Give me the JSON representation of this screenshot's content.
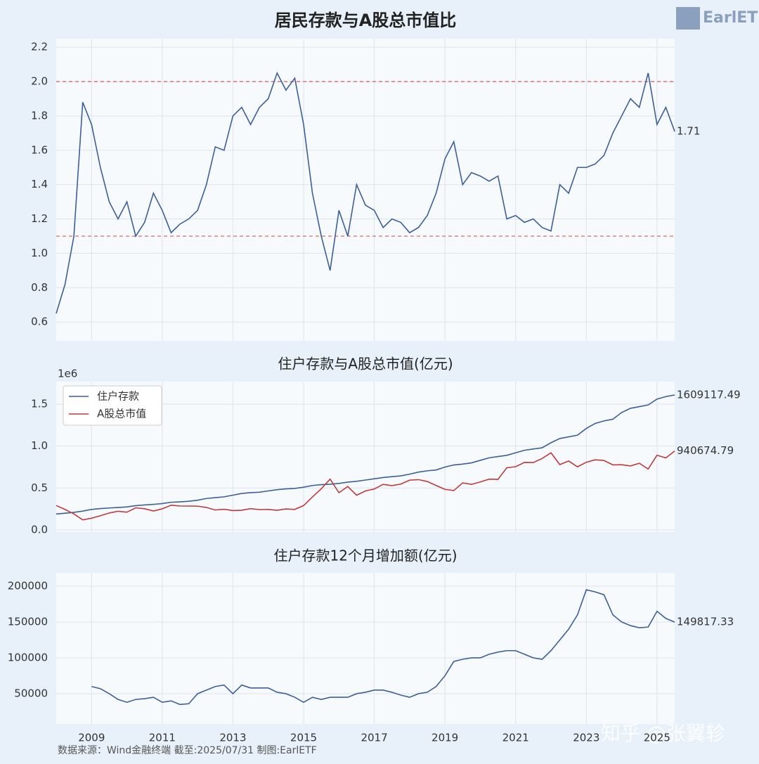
{
  "logo": "EarlETF",
  "footer": "数据来源：Wind金融终端 截至:2025/07/31 制图:EarlETF",
  "watermark": "知乎 @张翼轸",
  "chart_data": [
    {
      "type": "line",
      "title": "居民存款与A股总市值比",
      "xlim": [
        2008,
        2025.5
      ],
      "ylim": [
        0.49,
        2.25
      ],
      "yticks": [
        0.6,
        0.8,
        {
          "value": 1,
          "label": "1.0"
        },
        1.2,
        1.4,
        1.6,
        1.8,
        {
          "value": 2,
          "label": "2.0"
        },
        2.2
      ],
      "grid": true,
      "hlines": [
        2.0,
        1.1
      ],
      "hline_color": "#e06666",
      "end_labels": true,
      "x": [
        2008,
        2008.25,
        2008.5,
        2008.75,
        2009,
        2009.25,
        2009.5,
        2009.75,
        2010,
        2010.25,
        2010.5,
        2010.75,
        2011,
        2011.25,
        2011.5,
        2011.75,
        2012,
        2012.25,
        2012.5,
        2012.75,
        2013,
        2013.25,
        2013.5,
        2013.75,
        2014,
        2014.25,
        2014.5,
        2014.75,
        2015,
        2015.25,
        2015.5,
        2015.75,
        2016,
        2016.25,
        2016.5,
        2016.75,
        2017,
        2017.25,
        2017.5,
        2017.75,
        2018,
        2018.25,
        2018.5,
        2018.75,
        2019,
        2019.25,
        2019.5,
        2019.75,
        2020,
        2020.25,
        2020.5,
        2020.75,
        2021,
        2021.25,
        2021.5,
        2021.75,
        2022,
        2022.25,
        2022.5,
        2022.75,
        2023,
        2023.25,
        2023.5,
        2023.75,
        2024,
        2024.25,
        2024.5,
        2024.75,
        2025,
        2025.25,
        2025.5
      ],
      "series": [
        {
          "color": "#3a5f9a",
          "values": [
            0.65,
            0.82,
            1.1,
            1.88,
            1.75,
            1.5,
            1.3,
            1.2,
            1.3,
            1.1,
            1.18,
            1.35,
            1.25,
            1.12,
            1.17,
            1.2,
            1.25,
            1.4,
            1.62,
            1.6,
            1.8,
            1.85,
            1.75,
            1.85,
            1.9,
            2.05,
            1.95,
            2.02,
            1.75,
            1.35,
            1.1,
            0.9,
            1.25,
            1.1,
            1.4,
            1.28,
            1.25,
            1.15,
            1.2,
            1.18,
            1.12,
            1.15,
            1.22,
            1.35,
            1.55,
            1.65,
            1.4,
            1.47,
            1.45,
            1.42,
            1.45,
            1.2,
            1.22,
            1.18,
            1.2,
            1.15,
            1.13,
            1.4,
            1.35,
            1.5,
            1.5,
            1.52,
            1.57,
            1.7,
            1.8,
            1.9,
            1.85,
            2.05,
            1.75,
            1.85,
            1.71
          ]
        }
      ]
    },
    {
      "type": "line",
      "title": "住户存款与A股总市值(亿元)",
      "y_offset_label": "1e6",
      "xlim": [
        2008,
        2025.5
      ],
      "ylim": [
        -25000,
        1768000
      ],
      "yticks": [
        {
          "value": 0,
          "label": "0.0"
        },
        {
          "value": 500000,
          "label": "0.5"
        },
        {
          "value": 1000000,
          "label": "1.0"
        },
        {
          "value": 1500000,
          "label": "1.5"
        }
      ],
      "grid": true,
      "legend": "upper-left",
      "end_labels": true,
      "x": [
        2008,
        2008.25,
        2008.5,
        2008.75,
        2009,
        2009.25,
        2009.5,
        2009.75,
        2010,
        2010.25,
        2010.5,
        2010.75,
        2011,
        2011.25,
        2011.5,
        2011.75,
        2012,
        2012.25,
        2012.5,
        2012.75,
        2013,
        2013.25,
        2013.5,
        2013.75,
        2014,
        2014.25,
        2014.5,
        2014.75,
        2015,
        2015.25,
        2015.5,
        2015.75,
        2016,
        2016.25,
        2016.5,
        2016.75,
        2017,
        2017.25,
        2017.5,
        2017.75,
        2018,
        2018.25,
        2018.5,
        2018.75,
        2019,
        2019.25,
        2019.5,
        2019.75,
        2020,
        2020.25,
        2020.5,
        2020.75,
        2021,
        2021.25,
        2021.5,
        2021.75,
        2022,
        2022.25,
        2022.5,
        2022.75,
        2023,
        2023.25,
        2023.5,
        2023.75,
        2024,
        2024.25,
        2024.5,
        2024.75,
        2025,
        2025.25,
        2025.5
      ],
      "series": [
        {
          "name": "住户存款",
          "color": "#3a5f9a",
          "values": [
            190000,
            200000,
            210000,
            225000,
            245000,
            255000,
            262000,
            268000,
            275000,
            290000,
            298000,
            305000,
            315000,
            330000,
            335000,
            342000,
            355000,
            375000,
            385000,
            395000,
            415000,
            435000,
            445000,
            450000,
            465000,
            480000,
            490000,
            495000,
            510000,
            530000,
            540000,
            545000,
            555000,
            570000,
            580000,
            595000,
            610000,
            625000,
            635000,
            645000,
            665000,
            690000,
            705000,
            715000,
            750000,
            775000,
            785000,
            800000,
            830000,
            860000,
            875000,
            890000,
            920000,
            950000,
            965000,
            980000,
            1040000,
            1090000,
            1110000,
            1130000,
            1210000,
            1270000,
            1300000,
            1320000,
            1400000,
            1450000,
            1470000,
            1490000,
            1560000,
            1590000,
            1609117.49
          ]
        },
        {
          "name": "A股总市值",
          "color": "#c0393b",
          "values": [
            292000,
            244000,
            191000,
            120000,
            140000,
            170000,
            202000,
            223000,
            212000,
            264000,
            253000,
            226000,
            252000,
            295000,
            286000,
            285000,
            284000,
            268000,
            238000,
            247000,
            231000,
            235000,
            254000,
            243000,
            245000,
            234000,
            251000,
            245000,
            291000,
            393000,
            491000,
            606000,
            444000,
            518000,
            414000,
            465000,
            488000,
            543000,
            529000,
            547000,
            594000,
            600000,
            578000,
            530000,
            484000,
            470000,
            561000,
            544000,
            572000,
            606000,
            603000,
            742000,
            754000,
            805000,
            804000,
            852000,
            920000,
            779000,
            822000,
            753000,
            807000,
            836000,
            828000,
            776000,
            778000,
            763000,
            795000,
            727000,
            891000,
            859000,
            940674.79
          ]
        }
      ]
    },
    {
      "type": "line",
      "title": "住户存款12个月增加额(亿元)",
      "xlim": [
        2008,
        2025.5
      ],
      "ylim": [
        7800,
        218600
      ],
      "xticks": [
        2009,
        2011,
        2013,
        2015,
        2017,
        2019,
        2021,
        2023,
        2025
      ],
      "yticks": [
        50000,
        100000,
        150000,
        200000
      ],
      "grid": true,
      "end_labels": true,
      "x": [
        2009,
        2009.25,
        2009.5,
        2009.75,
        2010,
        2010.25,
        2010.5,
        2010.75,
        2011,
        2011.25,
        2011.5,
        2011.75,
        2012,
        2012.25,
        2012.5,
        2012.75,
        2013,
        2013.25,
        2013.5,
        2013.75,
        2014,
        2014.25,
        2014.5,
        2014.75,
        2015,
        2015.25,
        2015.5,
        2015.75,
        2016,
        2016.25,
        2016.5,
        2016.75,
        2017,
        2017.25,
        2017.5,
        2017.75,
        2018,
        2018.25,
        2018.5,
        2018.75,
        2019,
        2019.25,
        2019.5,
        2019.75,
        2020,
        2020.25,
        2020.5,
        2020.75,
        2021,
        2021.25,
        2021.5,
        2021.75,
        2022,
        2022.25,
        2022.5,
        2022.75,
        2023,
        2023.25,
        2023.5,
        2023.75,
        2024,
        2024.25,
        2024.5,
        2024.75,
        2025,
        2025.25,
        2025.5
      ],
      "series": [
        {
          "color": "#3a5f9a",
          "values": [
            60000,
            57000,
            50000,
            42000,
            38000,
            42000,
            43000,
            45000,
            38000,
            40000,
            35000,
            36000,
            50000,
            55000,
            60000,
            62000,
            50000,
            62000,
            58000,
            58000,
            58000,
            52000,
            50000,
            45000,
            38000,
            45000,
            42000,
            45000,
            45000,
            45000,
            50000,
            52000,
            55000,
            55000,
            52000,
            48000,
            45000,
            50000,
            52000,
            60000,
            75000,
            95000,
            98000,
            100000,
            100000,
            105000,
            108000,
            110000,
            110000,
            105000,
            100000,
            98000,
            110000,
            125000,
            140000,
            160000,
            195000,
            192000,
            188000,
            160000,
            150000,
            145000,
            142000,
            143000,
            165000,
            155000,
            149817.33
          ]
        }
      ]
    }
  ]
}
